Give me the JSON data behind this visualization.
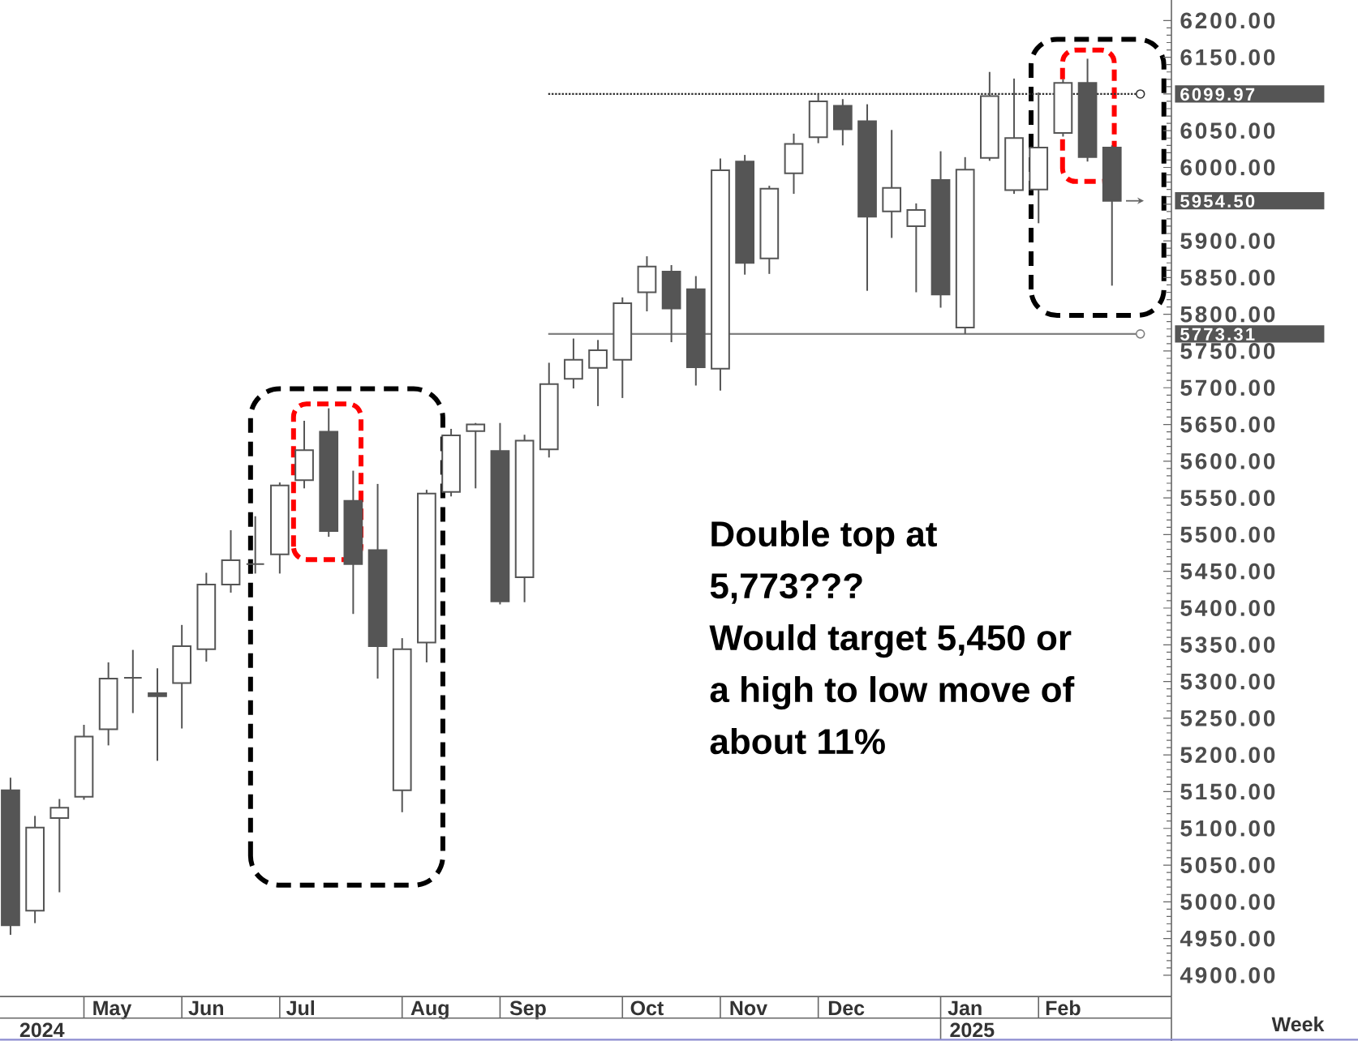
{
  "chart_data": {
    "type": "candlestick",
    "x": [
      "2024-04-15",
      "2024-04-22",
      "2024-04-29",
      "2024-05-06",
      "2024-05-13",
      "2024-05-20",
      "2024-05-27",
      "2024-06-03",
      "2024-06-10",
      "2024-06-17",
      "2024-06-24",
      "2024-07-01",
      "2024-07-08",
      "2024-07-15",
      "2024-07-22",
      "2024-07-29",
      "2024-08-05",
      "2024-08-12",
      "2024-08-19",
      "2024-08-26",
      "2024-09-02",
      "2024-09-09",
      "2024-09-16",
      "2024-09-23",
      "2024-09-30",
      "2024-10-07",
      "2024-10-14",
      "2024-10-21",
      "2024-10-28",
      "2024-11-04",
      "2024-11-11",
      "2024-11-18",
      "2024-11-25",
      "2024-12-02",
      "2024-12-09",
      "2024-12-16",
      "2024-12-23",
      "2024-12-30",
      "2025-01-06",
      "2025-01-13",
      "2025-01-20",
      "2025-01-27",
      "2025-02-03",
      "2025-02-10",
      "2025-02-17",
      "2025-02-24"
    ],
    "ohlc": [
      [
        5152,
        5169,
        4955,
        4968
      ],
      [
        4988,
        5117,
        4971,
        5101
      ],
      [
        5114,
        5140,
        5013,
        5128
      ],
      [
        5143,
        5241,
        5139,
        5225
      ],
      [
        5235,
        5326,
        5213,
        5304
      ],
      [
        5305,
        5343,
        5257,
        5305
      ],
      [
        5284,
        5318,
        5192,
        5280
      ],
      [
        5298,
        5377,
        5236,
        5348
      ],
      [
        5344,
        5448,
        5327,
        5432
      ],
      [
        5432,
        5506,
        5421,
        5465
      ],
      [
        5460,
        5525,
        5447,
        5460
      ],
      [
        5473,
        5571,
        5447,
        5567
      ],
      [
        5574,
        5655,
        5563,
        5615
      ],
      [
        5640,
        5672,
        5497,
        5505
      ],
      [
        5546,
        5587,
        5392,
        5460
      ],
      [
        5479,
        5569,
        5304,
        5348
      ],
      [
        5152,
        5359,
        5122,
        5344
      ],
      [
        5353,
        5561,
        5326,
        5556
      ],
      [
        5558,
        5644,
        5552,
        5635
      ],
      [
        5641,
        5652,
        5563,
        5650
      ],
      [
        5614,
        5652,
        5405,
        5409
      ],
      [
        5442,
        5636,
        5408,
        5628
      ],
      [
        5616,
        5734,
        5605,
        5705
      ],
      [
        5712,
        5767,
        5699,
        5738
      ],
      [
        5727,
        5765,
        5675,
        5751
      ],
      [
        5738,
        5823,
        5686,
        5815
      ],
      [
        5830,
        5879,
        5804,
        5865
      ],
      [
        5858,
        5867,
        5762,
        5808
      ],
      [
        5834,
        5852,
        5703,
        5728
      ],
      [
        5726,
        6012,
        5696,
        5996
      ],
      [
        6008,
        6017,
        5854,
        5870
      ],
      [
        5876,
        5975,
        5855,
        5971
      ],
      [
        5992,
        6046,
        5964,
        6032
      ],
      [
        6041,
        6099.97,
        6033,
        6090
      ],
      [
        6084,
        6093,
        6030,
        6052
      ],
      [
        6063,
        6086,
        5832,
        5933
      ],
      [
        5940,
        6051,
        5904,
        5972
      ],
      [
        5920,
        5951,
        5830,
        5942
      ],
      [
        5983,
        6022,
        5809,
        5827
      ],
      [
        5782,
        6014,
        5773.31,
        5997
      ],
      [
        6013,
        6130,
        6009,
        6097
      ],
      [
        5969,
        6121,
        5964,
        6040
      ],
      [
        5970,
        6102,
        5924,
        6027
      ],
      [
        6047,
        6120,
        6042,
        6115
      ],
      [
        6115,
        6148,
        6008,
        6014
      ],
      [
        6027,
        6030,
        5839,
        5954.5
      ]
    ],
    "color": "#555555",
    "xlim": [
      "2024-04-12",
      "2025-03-13"
    ],
    "xticks": [
      {
        "value": "2024-05-14",
        "label": "May"
      },
      {
        "value": "2024-06-10",
        "label": "Jun"
      },
      {
        "value": "2024-07-07",
        "label": "Jul"
      },
      {
        "value": "2024-08-13",
        "label": "Aug"
      },
      {
        "value": "2024-09-10",
        "label": "Sep"
      },
      {
        "value": "2024-10-14",
        "label": "Oct"
      },
      {
        "value": "2024-11-12",
        "label": "Nov"
      },
      {
        "value": "2024-12-10",
        "label": "Dec"
      },
      {
        "value": "2025-01-13",
        "label": "Jan"
      },
      {
        "value": "2025-02-10",
        "label": "Feb"
      },
      {
        "value": "2024-05-06",
        "label": null
      },
      {
        "value": "2024-06-03",
        "label": null
      },
      {
        "value": "2024-07-01",
        "label": null
      },
      {
        "value": "2024-08-05",
        "label": null
      },
      {
        "value": "2024-09-02",
        "label": null
      },
      {
        "value": "2024-10-07",
        "label": null
      },
      {
        "value": "2024-11-04",
        "label": null
      },
      {
        "value": "2024-12-02",
        "label": null
      },
      {
        "value": "2025-01-06",
        "label": null
      },
      {
        "value": "2025-02-03",
        "label": null
      }
    ],
    "x2lim": [
      "2024-04-12",
      "2025-03-13"
    ],
    "x2ticks": [
      {
        "value": "2024-04-24",
        "label": "2024"
      },
      {
        "value": "2025-01-06",
        "label": null
      },
      {
        "value": "2025-01-15",
        "label": "2025"
      }
    ],
    "xlabel": "Week",
    "ylim": [
      4871,
      6228
    ],
    "yticks": [
      {
        "value": 4900,
        "label": "4900.00"
      },
      {
        "value": 4950,
        "label": "4950.00"
      },
      {
        "value": 5000,
        "label": "5000.00"
      },
      {
        "value": 5050,
        "label": "5050.00"
      },
      {
        "value": 5100,
        "label": "5100.00"
      },
      {
        "value": 5150,
        "label": "5150.00"
      },
      {
        "value": 5200,
        "label": "5200.00"
      },
      {
        "value": 5250,
        "label": "5250.00"
      },
      {
        "value": 5300,
        "label": "5300.00"
      },
      {
        "value": 5350,
        "label": "5350.00"
      },
      {
        "value": 5400,
        "label": "5400.00"
      },
      {
        "value": 5450,
        "label": "5450.00"
      },
      {
        "value": 5500,
        "label": "5500.00"
      },
      {
        "value": 5550,
        "label": "5550.00"
      },
      {
        "value": 5600,
        "label": "5600.00"
      },
      {
        "value": 5650,
        "label": "5650.00"
      },
      {
        "value": 5700,
        "label": "5700.00"
      },
      {
        "value": 5750,
        "label": "5750.00"
      },
      {
        "value": 5800,
        "label": "5800.00"
      },
      {
        "value": 5850,
        "label": "5850.00"
      },
      {
        "value": 5900,
        "label": "5900.00"
      },
      {
        "value": 5950,
        "label": null
      },
      {
        "value": 6000,
        "label": "6000.00"
      },
      {
        "value": 6050,
        "label": "6050.00"
      },
      {
        "value": 6100,
        "label": null
      },
      {
        "value": 6150,
        "label": "6150.00"
      },
      {
        "value": 6200,
        "label": "6200.00"
      }
    ],
    "ref_lines": [
      {
        "axis": "y",
        "value": 6099.97,
        "label": "6099.97",
        "line_style": "dotted",
        "color": "#333333"
      },
      {
        "axis": "y",
        "value": 5773.31,
        "label": "5773.31",
        "line_style": "solid",
        "color": "#808080"
      }
    ],
    "annotations": [
      "Double top at 5,773???",
      "Would target 5,450 or a high to low move of about 11%",
      "5954.50"
    ]
  }
}
